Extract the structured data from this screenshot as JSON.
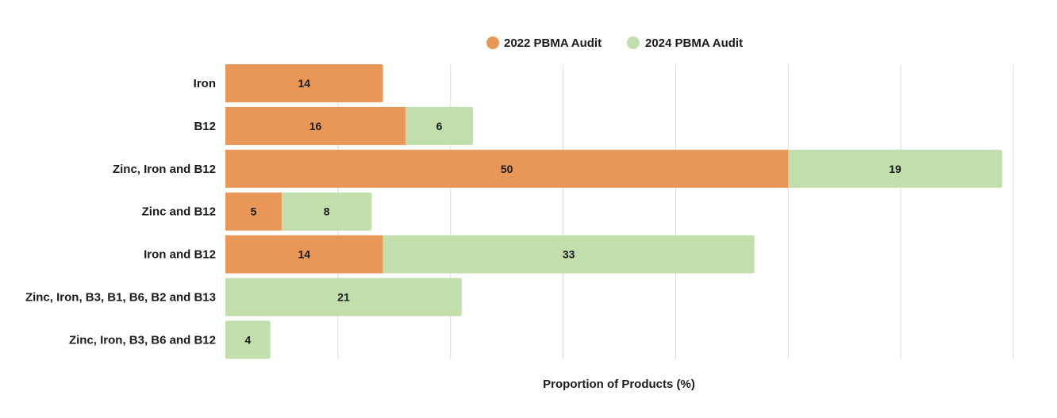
{
  "chart_data": {
    "type": "bar",
    "orientation": "horizontal",
    "stacked": true,
    "title": "",
    "xlabel": "Proportion of Products (%)",
    "ylabel": "",
    "xlim": [
      0,
      70
    ],
    "x_grid_step": 10,
    "grid": true,
    "legend_position": "top",
    "categories": [
      "Iron",
      "B12",
      "Zinc, Iron and B12",
      "Zinc and B12",
      "Iron and B12",
      "Zinc, Iron, B3, B1, B6, B2 and B13",
      "Zinc, Iron, B3, B6 and B12"
    ],
    "series": [
      {
        "name": "2022 PBMA Audit",
        "color": "#E99756",
        "values": [
          14,
          16,
          50,
          5,
          14,
          null,
          null
        ]
      },
      {
        "name": "2024 PBMA Audit",
        "color": "#C1DEAC",
        "values": [
          null,
          6,
          19,
          8,
          33,
          21,
          4
        ]
      }
    ]
  }
}
